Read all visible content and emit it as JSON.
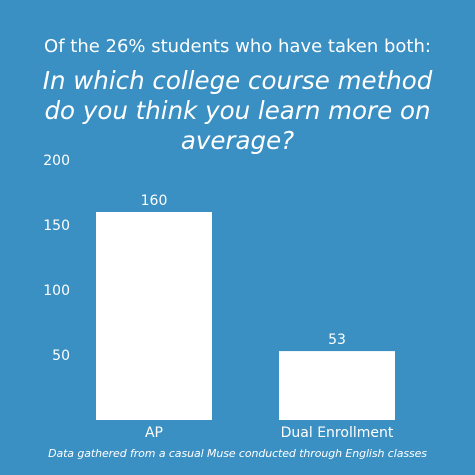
{
  "subtitle": "Of the 26% students who have taken both:",
  "title_lines": [
    "In which college course method",
    "do you think you learn more on",
    "average?"
  ],
  "footnote": "Data gathered from a casual Muse conducted through English classes",
  "colors": {
    "background": "#3a8fc3",
    "bars": "#ffffff",
    "text": "#ffffff"
  },
  "chart_data": {
    "type": "bar",
    "title": "In which college course method do you think you learn more on average?",
    "subtitle": "Of the 26% students who have taken both:",
    "categories": [
      "AP",
      "Dual Enrollment"
    ],
    "values": [
      160,
      53
    ],
    "data_labels": [
      "160",
      "53"
    ],
    "yticks": [
      "50",
      "100",
      "150",
      "200"
    ],
    "ylim": [
      0,
      200
    ],
    "xlabel": "",
    "ylabel": "",
    "grid": false,
    "legend": "none"
  }
}
